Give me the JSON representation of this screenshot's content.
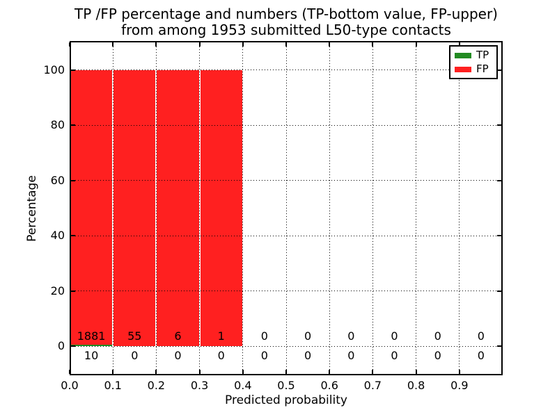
{
  "chart_data": {
    "type": "bar",
    "stacked": true,
    "title_line1": "TP /FP percentage and numbers (TP-bottom value, FP-upper)",
    "title_line2": "from among 1953 submitted L50-type contacts",
    "xlabel": "Predicted probability",
    "ylabel": "Percentage",
    "xlim": [
      0.0,
      1.0
    ],
    "ylim": [
      -10.5,
      110.5
    ],
    "grid": true,
    "grid_style": "dotted",
    "legend_position": "upper right",
    "total_submitted_contacts": 1953,
    "bin_width": 0.1,
    "bin_starts": [
      0.0,
      0.1,
      0.2,
      0.3,
      0.4,
      0.5,
      0.6,
      0.7,
      0.8,
      0.9
    ],
    "xtick_values": [
      0.0,
      0.1,
      0.2,
      0.3,
      0.4,
      0.5,
      0.6,
      0.7,
      0.8,
      0.9
    ],
    "xtick_labels": [
      "0.0",
      "0.1",
      "0.2",
      "0.3",
      "0.4",
      "0.5",
      "0.6",
      "0.7",
      "0.8",
      "0.9"
    ],
    "ytick_values": [
      0,
      20,
      40,
      60,
      80,
      100
    ],
    "ytick_labels": [
      "0",
      "20",
      "40",
      "60",
      "80",
      "100"
    ],
    "series": [
      {
        "name": "TP",
        "color": "#228b22",
        "counts": [
          10,
          0,
          0,
          0,
          0,
          0,
          0,
          0,
          0,
          0
        ],
        "count_label_row": "below-zero-line"
      },
      {
        "name": "FP",
        "color": "#ff2020",
        "counts": [
          1881,
          55,
          6,
          1,
          0,
          0,
          0,
          0,
          0,
          0
        ],
        "count_label_row": "above-zero-line"
      }
    ],
    "bar_heights_percent": {
      "TP": [
        0.53,
        0,
        0,
        0,
        0,
        0,
        0,
        0,
        0,
        0
      ],
      "FP": [
        99.47,
        100,
        100,
        100,
        0,
        0,
        0,
        0,
        0,
        0
      ]
    }
  }
}
